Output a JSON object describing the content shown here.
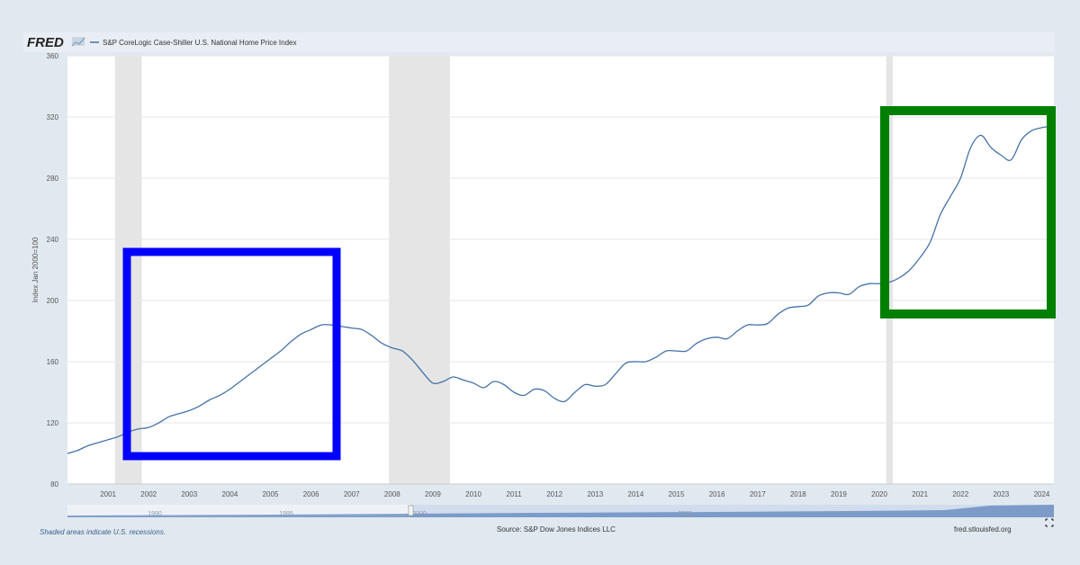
{
  "header": {
    "logo_text": "FRED",
    "legend_label": "S&P CoreLogic Case-Shiller U.S. National Home Price Index"
  },
  "footer": {
    "note": "Shaded areas indicate U.S. recessions.",
    "source": "Source: S&P Dow Jones Indices LLC",
    "site": "fred.stlouisfed.org"
  },
  "navigator": {
    "labels": [
      "1990",
      "1995",
      "2000",
      "2005"
    ]
  },
  "colors": {
    "line": "#4572a7",
    "recession": "#e5e5e5",
    "blue_box": "#0000ff",
    "green_box": "#008000",
    "background": "#e1e9f0"
  },
  "chart_data": {
    "type": "line",
    "title": "S&P CoreLogic Case-Shiller U.S. National Home Price Index",
    "ylabel": "Index Jan 2000=100",
    "xlabel": "",
    "xlim": [
      2000.0,
      2024.3
    ],
    "ylim": [
      80,
      360
    ],
    "yticks": [
      80,
      120,
      160,
      200,
      240,
      280,
      320,
      360
    ],
    "xticks": [
      2001,
      2002,
      2003,
      2004,
      2005,
      2006,
      2007,
      2008,
      2009,
      2010,
      2011,
      2012,
      2013,
      2014,
      2015,
      2016,
      2017,
      2018,
      2019,
      2020,
      2021,
      2022,
      2023,
      2024
    ],
    "grid": true,
    "legend": "top-left",
    "recessions": [
      [
        2001.17,
        2001.83
      ],
      [
        2007.92,
        2009.42
      ],
      [
        2020.17,
        2020.33
      ]
    ],
    "series": [
      {
        "name": "S&P CoreLogic Case-Shiller U.S. National Home Price Index",
        "x": [
          2000.0,
          2000.25,
          2000.5,
          2000.75,
          2001.0,
          2001.25,
          2001.5,
          2001.75,
          2002.0,
          2002.25,
          2002.5,
          2002.75,
          2003.0,
          2003.25,
          2003.5,
          2003.75,
          2004.0,
          2004.25,
          2004.5,
          2004.75,
          2005.0,
          2005.25,
          2005.5,
          2005.75,
          2006.0,
          2006.25,
          2006.5,
          2006.75,
          2007.0,
          2007.25,
          2007.5,
          2007.75,
          2008.0,
          2008.25,
          2008.5,
          2008.75,
          2009.0,
          2009.25,
          2009.5,
          2009.75,
          2010.0,
          2010.25,
          2010.5,
          2010.75,
          2011.0,
          2011.25,
          2011.5,
          2011.75,
          2012.0,
          2012.25,
          2012.5,
          2012.75,
          2013.0,
          2013.25,
          2013.5,
          2013.75,
          2014.0,
          2014.25,
          2014.5,
          2014.75,
          2015.0,
          2015.25,
          2015.5,
          2015.75,
          2016.0,
          2016.25,
          2016.5,
          2016.75,
          2017.0,
          2017.25,
          2017.5,
          2017.75,
          2018.0,
          2018.25,
          2018.5,
          2018.75,
          2019.0,
          2019.25,
          2019.5,
          2019.75,
          2020.0,
          2020.25,
          2020.5,
          2020.75,
          2021.0,
          2021.25,
          2021.5,
          2021.75,
          2022.0,
          2022.25,
          2022.5,
          2022.75,
          2023.0,
          2023.25,
          2023.5,
          2023.75,
          2024.0,
          2024.25
        ],
        "y": [
          100,
          102,
          105,
          107,
          109,
          111,
          114,
          116,
          117,
          120,
          124,
          126,
          128,
          131,
          135,
          138,
          142,
          147,
          152,
          157,
          162,
          167,
          173,
          178,
          181,
          184,
          184,
          183,
          182,
          181,
          177,
          172,
          169,
          167,
          161,
          153,
          146,
          147,
          150,
          148,
          146,
          143,
          147,
          145,
          140,
          138,
          142,
          141,
          136,
          134,
          140,
          145,
          144,
          145,
          152,
          159,
          160,
          160,
          163,
          167,
          167,
          167,
          172,
          175,
          176,
          175,
          180,
          184,
          184,
          185,
          191,
          195,
          196,
          197,
          203,
          205,
          205,
          204,
          209,
          211,
          211,
          212,
          215,
          220,
          228,
          238,
          256,
          268,
          280,
          300,
          308,
          300,
          295,
          292,
          305,
          311,
          313,
          314
        ]
      }
    ]
  }
}
